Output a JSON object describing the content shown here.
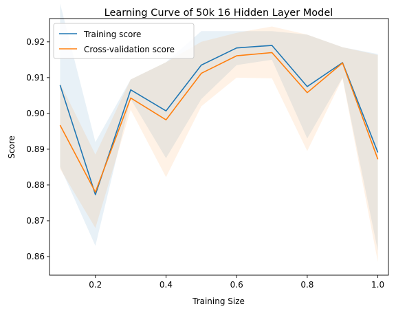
{
  "chart_data": {
    "type": "line",
    "title": "Learning Curve of 50k 16 Hidden Layer Model",
    "xlabel": "Training Size",
    "ylabel": "Score",
    "xlim": [
      0.07,
      1.03
    ],
    "ylim": [
      0.8548,
      0.9265
    ],
    "xticks": [
      0.2,
      0.4,
      0.6,
      0.8,
      1.0
    ],
    "xtick_labels": [
      "0.2",
      "0.4",
      "0.6",
      "0.8",
      "1.0"
    ],
    "yticks": [
      0.86,
      0.87,
      0.88,
      0.89,
      0.9,
      0.91,
      0.92
    ],
    "ytick_labels": [
      "0.86",
      "0.87",
      "0.88",
      "0.89",
      "0.90",
      "0.91",
      "0.92"
    ],
    "grid": false,
    "legend_position": "top-left",
    "x": [
      0.1,
      0.2,
      0.3,
      0.4,
      0.5,
      0.6,
      0.7,
      0.8,
      0.9,
      1.0
    ],
    "series": [
      {
        "name": "Training score",
        "color": "#1f77b4",
        "values": [
          0.9079,
          0.8773,
          0.9066,
          0.9007,
          0.9135,
          0.9183,
          0.919,
          0.9075,
          0.9142,
          0.8891
        ],
        "band_upper": [
          0.9307,
          0.892,
          0.9095,
          0.9143,
          0.923,
          0.923,
          0.923,
          0.922,
          0.9185,
          0.9166
        ],
        "band_lower": [
          0.8851,
          0.863,
          0.904,
          0.8875,
          0.904,
          0.9135,
          0.915,
          0.893,
          0.91,
          0.8616
        ]
      },
      {
        "name": "Cross-validation score",
        "color": "#ff7f0e",
        "values": [
          0.8967,
          0.878,
          0.9043,
          0.8982,
          0.9112,
          0.9161,
          0.917,
          0.9058,
          0.9141,
          0.8872
        ],
        "band_upper": [
          0.9085,
          0.8885,
          0.9095,
          0.9143,
          0.92,
          0.9225,
          0.9243,
          0.922,
          0.9185,
          0.9163
        ],
        "band_lower": [
          0.8845,
          0.868,
          0.901,
          0.8822,
          0.902,
          0.91,
          0.9098,
          0.8895,
          0.9098,
          0.8585
        ]
      }
    ]
  }
}
